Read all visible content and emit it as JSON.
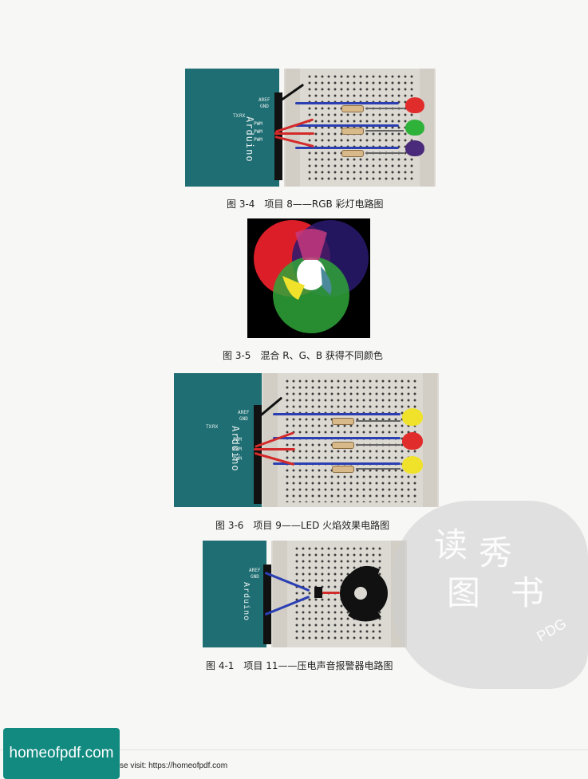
{
  "figures": [
    {
      "caption": "图 3-4　项目 8——RGB 彩灯电路图",
      "board_label": "Arduino",
      "led_colors": [
        "#e12c2c",
        "#2fb23a",
        "#4a2a7a"
      ]
    },
    {
      "caption": "图 3-5　混合 R、G、B 获得不同颜色",
      "circle_colors": [
        "#e8202b",
        "#2a1a6e",
        "#2fa538"
      ]
    },
    {
      "caption": "图 3-6　项目 9——LED 火焰效果电路图",
      "board_label": "Arduino",
      "led_colors": [
        "#f0e12a",
        "#e12c2c",
        "#f0e12a"
      ]
    },
    {
      "caption": "图 4-1　项目 11——压电声音报警器电路图",
      "board_label": "Arduino"
    }
  ],
  "pin_labels": [
    "AREF",
    "GND",
    "PWM",
    "PWM",
    "PWM",
    "DIGITAL"
  ],
  "board_small_labels": [
    "TX",
    "RX",
    "L"
  ],
  "watermark": {
    "text": "PDG",
    "glyphs": [
      "读",
      "秀",
      "图",
      "书"
    ]
  },
  "footer": {
    "badge": "homeofpdf.com",
    "text": "se visit: https://homeofpdf.com"
  }
}
